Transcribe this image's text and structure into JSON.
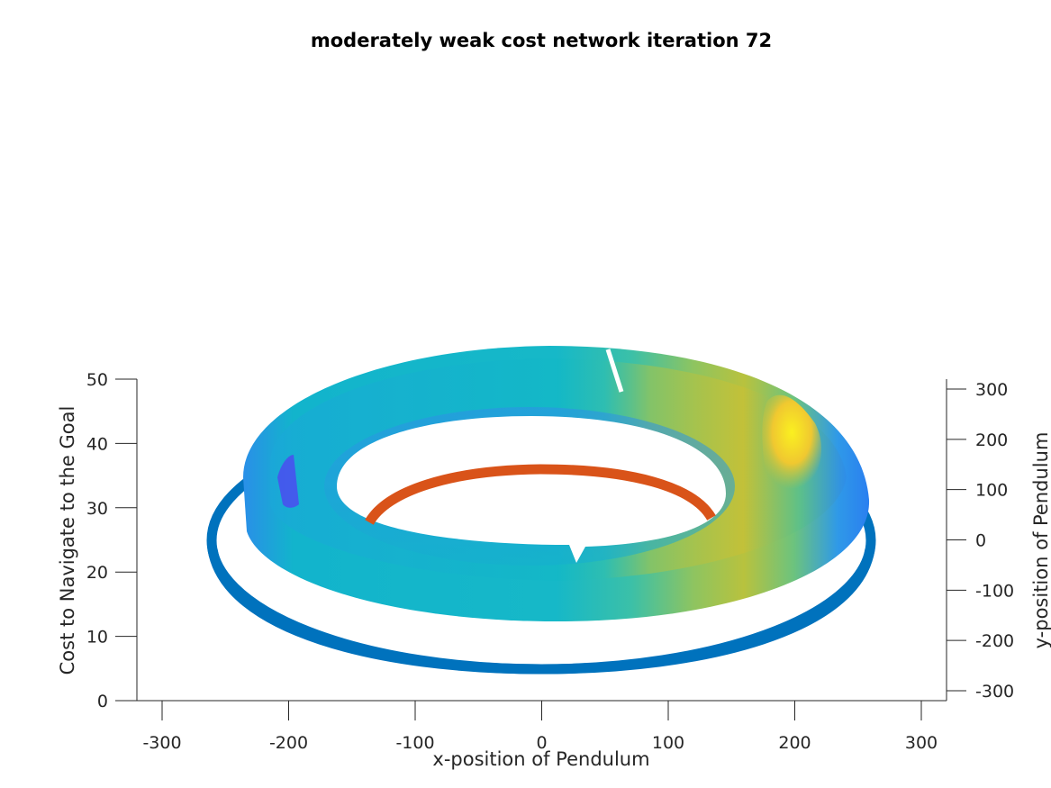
{
  "chart_data": {
    "type": "surface3d",
    "title": "moderately weak cost network iteration 72",
    "xlabel": "x-position of Pendulum",
    "ylabel": "y-position of Pendulum",
    "zlabel": "Cost to Navigate to the Goal",
    "xlim": [
      -320,
      320
    ],
    "ylim": [
      -320,
      320
    ],
    "zlim": [
      0,
      50
    ],
    "x_ticks": [
      -300,
      -200,
      -100,
      0,
      100,
      200,
      300
    ],
    "y_ticks": [
      300,
      200,
      100,
      0,
      -100,
      -200,
      -300
    ],
    "z_ticks": [
      0,
      10,
      20,
      30,
      40,
      50
    ],
    "colormap": "parula",
    "colors": {
      "outer_ring": "#0072bd",
      "inner_ring": "#d95319"
    },
    "series": [
      {
        "kind": "ring",
        "radius": 260,
        "z": 4
      },
      {
        "kind": "ring",
        "radius": 130,
        "z": 34
      },
      {
        "kind": "annulus_surface",
        "inner_radius": 160,
        "outer_radius": 230,
        "z_min": 20,
        "z_max": 40
      }
    ]
  }
}
